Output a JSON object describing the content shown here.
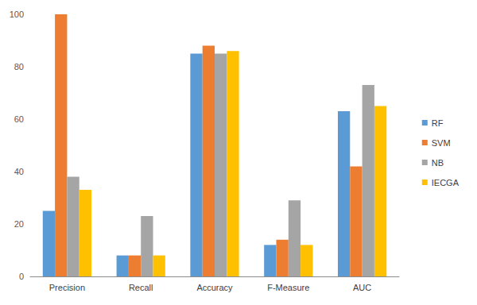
{
  "chart_data": {
    "type": "bar",
    "categories": [
      "Precision",
      "Recall",
      "Accuracy",
      "F-Measure",
      "AUC"
    ],
    "series": [
      {
        "name": "RF",
        "color": "#5b9bd5",
        "values": [
          25,
          8,
          85,
          12,
          63
        ]
      },
      {
        "name": "SVM",
        "color": "#ed7d31",
        "values": [
          100,
          8,
          88,
          14,
          42
        ]
      },
      {
        "name": "NB",
        "color": "#a5a5a5",
        "values": [
          38,
          23,
          85,
          29,
          73
        ]
      },
      {
        "name": "IECGA",
        "color": "#ffc000",
        "values": [
          33,
          8,
          86,
          12,
          65
        ]
      }
    ],
    "ylim": [
      0,
      100
    ],
    "yticks": [
      0,
      20,
      40,
      60,
      80,
      100
    ],
    "grid": false,
    "legend": "right"
  }
}
